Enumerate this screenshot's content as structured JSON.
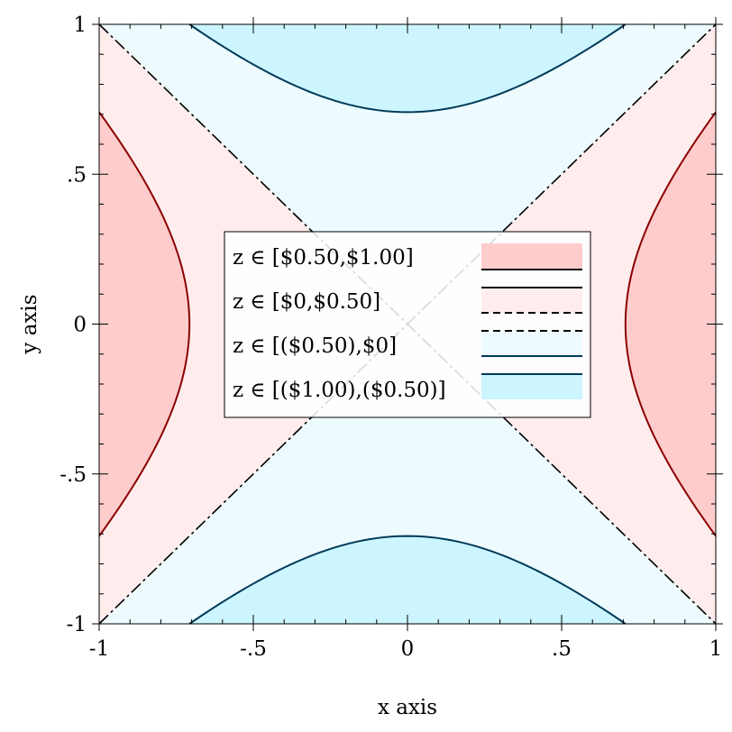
{
  "chart_data": {
    "type": "contour",
    "function": "x^2 - y^2",
    "xlabel": "x axis",
    "ylabel": "y axis",
    "xlim": [
      -1,
      1
    ],
    "ylim": [
      -1,
      1
    ],
    "x_ticks": [
      -1,
      -0.5,
      0,
      0.5,
      1
    ],
    "x_tick_labels": [
      "-1",
      "-.5",
      "0",
      ".5",
      "1"
    ],
    "y_ticks": [
      -1,
      -0.5,
      0,
      0.5,
      1
    ],
    "y_tick_labels": [
      "-1",
      "-.5",
      "0",
      ".5",
      "1"
    ],
    "contour_levels": [
      -0.5,
      0,
      0.5
    ],
    "bands": [
      {
        "label": "z ∈  [$0.50,$1.00]",
        "range": [
          0.5,
          1.0
        ],
        "fill": "#ffcccc"
      },
      {
        "label": "z ∈  [$0,$0.50]",
        "range": [
          0,
          0.5
        ],
        "fill": "#ffeded"
      },
      {
        "label": "z ∈  [($0.50),$0]",
        "range": [
          -0.5,
          0
        ],
        "fill": "#edfbff"
      },
      {
        "label": "z ∈  [($1.00),($0.50)]",
        "range": [
          -1.0,
          -0.5
        ],
        "fill": "#ccf5ff"
      }
    ],
    "line_colors": {
      "positive": "#8b0000",
      "zero": "#000000",
      "negative": "#003a5a"
    },
    "legend_position": "center"
  }
}
